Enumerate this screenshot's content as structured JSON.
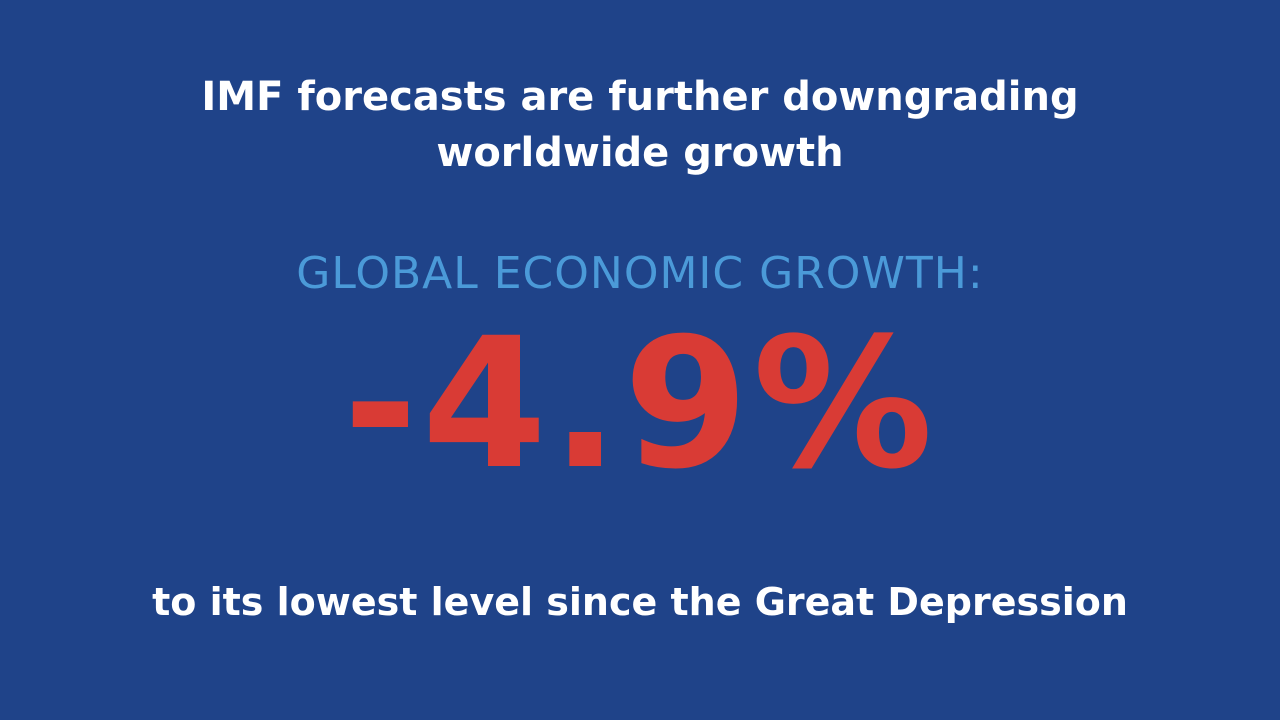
{
  "slide": {
    "title_lines": [
      "IMF forecasts are further downgrading",
      "worldwide growth"
    ],
    "label": "GLOBAL ECONOMIC GROWTH:",
    "figure": "-4.9%",
    "footer": "to its lowest level since the Great Depression"
  }
}
